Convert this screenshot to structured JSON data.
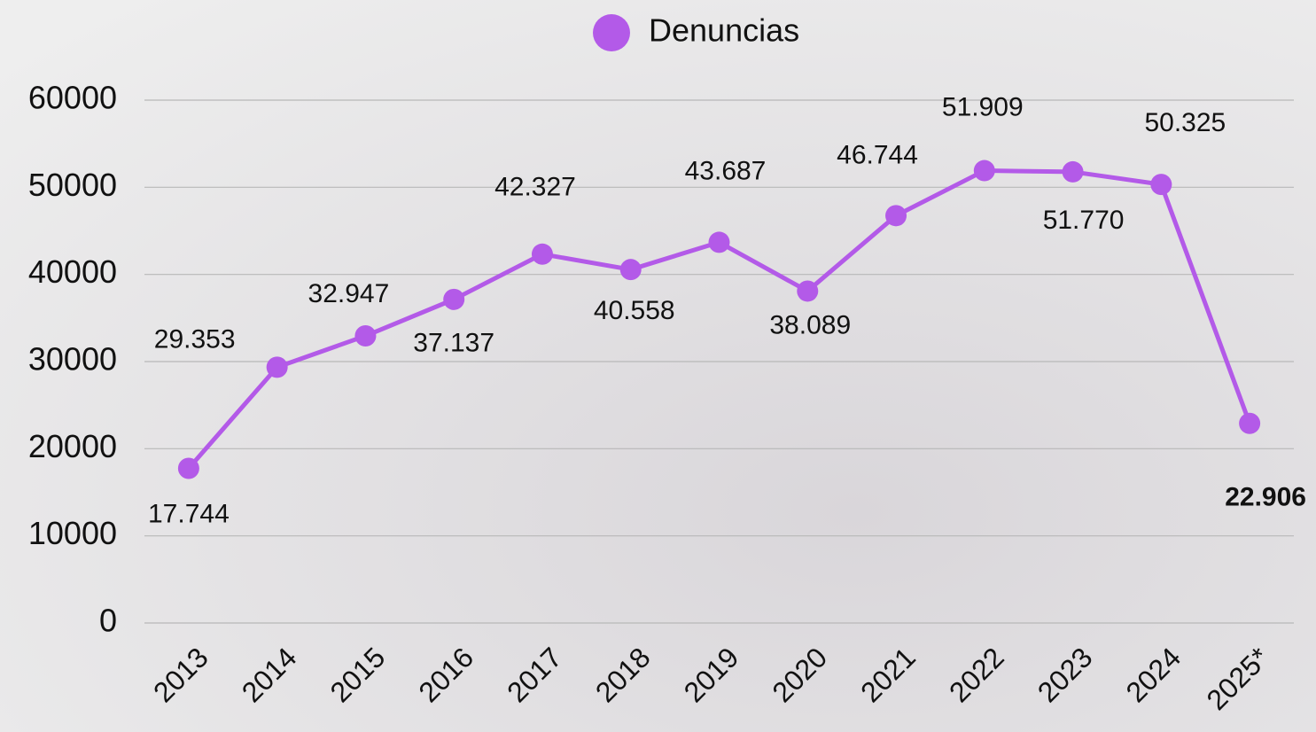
{
  "chart_data": {
    "type": "line",
    "categories": [
      "2013",
      "2014",
      "2015",
      "2016",
      "2017",
      "2018",
      "2019",
      "2020",
      "2021",
      "2022",
      "2023",
      "2024",
      "2025*"
    ],
    "series": [
      {
        "name": "Denuncias",
        "color": "#b35ae8",
        "values": [
          17744,
          29353,
          32947,
          37137,
          42327,
          40558,
          43687,
          38089,
          46744,
          51909,
          51770,
          50325,
          22906
        ],
        "value_labels": [
          "17.744",
          "29.353",
          "32.947",
          "37.137",
          "42.327",
          "40.558",
          "43.687",
          "38.089",
          "46.744",
          "51.909",
          "51.770",
          "50.325",
          "22.906"
        ]
      }
    ],
    "ylim": [
      0,
      60000
    ],
    "yticks": [
      0,
      10000,
      20000,
      30000,
      40000,
      50000,
      60000
    ],
    "grid": true,
    "legend": "top"
  }
}
